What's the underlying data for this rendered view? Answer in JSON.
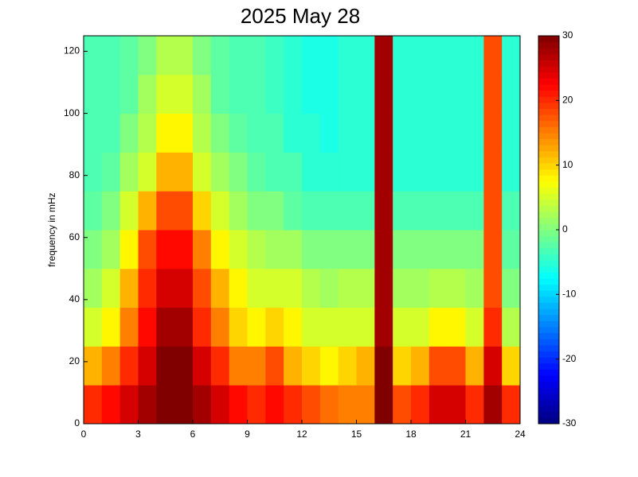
{
  "chart_data": {
    "type": "heatmap",
    "title": "2025 May 28",
    "y_label": "frequency in mHz",
    "x_bins": [
      0,
      1,
      2,
      3,
      4,
      5,
      6,
      7,
      8,
      9,
      10,
      11,
      12,
      13,
      14,
      15,
      16,
      17,
      18,
      19,
      20,
      21,
      22,
      23,
      24
    ],
    "y_bins": [
      0,
      12.5,
      25,
      37.5,
      50,
      62.5,
      75,
      87.5,
      100,
      112.5,
      125
    ],
    "z": [
      [
        20,
        22,
        25,
        28,
        30,
        30,
        28,
        25,
        22,
        20,
        22,
        20,
        18,
        16,
        15,
        15,
        30,
        18,
        20,
        25,
        25,
        20,
        28,
        20
      ],
      [
        12,
        15,
        20,
        25,
        30,
        30,
        25,
        20,
        15,
        15,
        18,
        12,
        10,
        8,
        10,
        12,
        30,
        10,
        12,
        18,
        18,
        12,
        25,
        10
      ],
      [
        5,
        8,
        15,
        22,
        28,
        28,
        20,
        15,
        10,
        8,
        10,
        8,
        5,
        5,
        5,
        5,
        28,
        5,
        5,
        8,
        8,
        5,
        20,
        3
      ],
      [
        2,
        5,
        12,
        20,
        25,
        25,
        18,
        12,
        8,
        5,
        5,
        5,
        3,
        2,
        3,
        3,
        28,
        2,
        2,
        3,
        3,
        2,
        18,
        0
      ],
      [
        0,
        2,
        8,
        18,
        22,
        22,
        15,
        8,
        5,
        3,
        2,
        2,
        0,
        0,
        0,
        0,
        28,
        0,
        0,
        0,
        0,
        0,
        18,
        -2
      ],
      [
        -2,
        0,
        5,
        12,
        18,
        18,
        10,
        5,
        2,
        0,
        0,
        -2,
        -3,
        -3,
        -3,
        -3,
        28,
        -3,
        -3,
        -3,
        -3,
        -3,
        18,
        -3
      ],
      [
        -3,
        -2,
        2,
        5,
        12,
        12,
        5,
        2,
        0,
        -2,
        -3,
        -3,
        -5,
        -5,
        -5,
        -5,
        28,
        -5,
        -5,
        -5,
        -5,
        -5,
        18,
        -5
      ],
      [
        -3,
        -3,
        0,
        3,
        8,
        8,
        3,
        0,
        -2,
        -3,
        -3,
        -5,
        -5,
        -6,
        -5,
        -5,
        28,
        -5,
        -5,
        -5,
        -5,
        -5,
        18,
        -5
      ],
      [
        -3,
        -3,
        -2,
        2,
        5,
        5,
        2,
        -2,
        -3,
        -3,
        -4,
        -5,
        -6,
        -6,
        -5,
        -5,
        28,
        -5,
        -5,
        -5,
        -5,
        -5,
        18,
        -5
      ],
      [
        -3,
        -3,
        -2,
        0,
        3,
        3,
        0,
        -2,
        -3,
        -3,
        -4,
        -5,
        -6,
        -6,
        -5,
        -5,
        28,
        -5,
        -5,
        -5,
        -5,
        -5,
        18,
        -5
      ]
    ],
    "xlim": [
      0,
      24
    ],
    "xticks": [
      0,
      3,
      6,
      9,
      12,
      15,
      18,
      21,
      24
    ],
    "ylim": [
      0,
      125
    ],
    "yticks": [
      0,
      20,
      40,
      60,
      80,
      100,
      120
    ],
    "colormap": "jet",
    "clim": [
      -30,
      30
    ],
    "cticks": [
      -30,
      -20,
      -10,
      0,
      10,
      20,
      30
    ]
  }
}
